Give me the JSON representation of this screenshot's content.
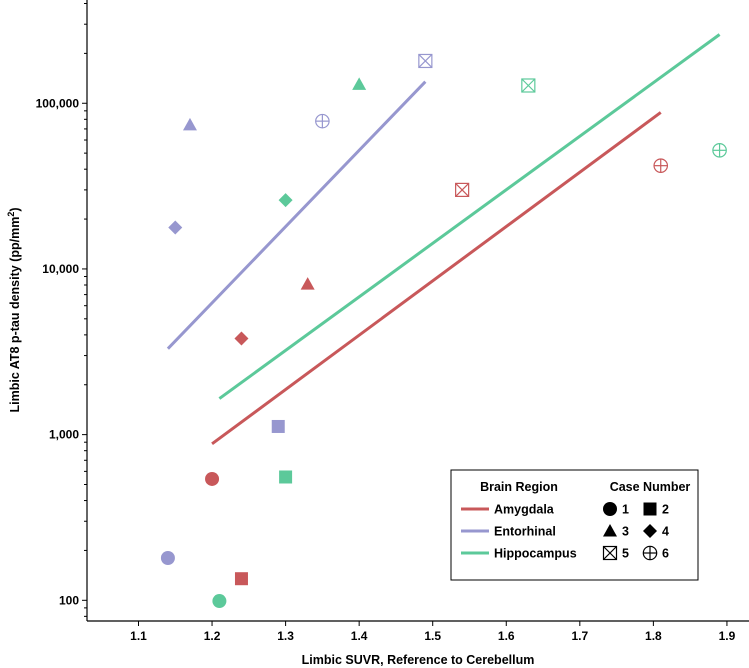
{
  "chart_data": {
    "type": "scatter",
    "xlabel": "Limbic SUVR, Reference to Cerebellum",
    "ylabel_main": "Limbic AT8 p-tau density (pp/mm",
    "ylabel_sup": "2",
    "ylabel_close": ")",
    "xlim": [
      1.03,
      1.93
    ],
    "ylim": [
      75,
      420000
    ],
    "yscale": "log",
    "x_ticks": [
      1.1,
      1.2,
      1.3,
      1.4,
      1.5,
      1.6,
      1.7,
      1.8,
      1.9
    ],
    "x_tick_labels": [
      "1.1",
      "1.2",
      "1.3",
      "1.4",
      "1.5",
      "1.6",
      "1.7",
      "1.8",
      "1.9"
    ],
    "y_ticks": [
      100,
      1000,
      10000,
      100000
    ],
    "y_tick_labels": [
      "100",
      "1,000",
      "10,000",
      "100,000"
    ],
    "series": [
      {
        "name": "Amygdala",
        "color": "#c8585a",
        "points": [
          {
            "case": 1,
            "x": 1.2,
            "y": 540
          },
          {
            "case": 2,
            "x": 1.24,
            "y": 135
          },
          {
            "case": 3,
            "x": 1.33,
            "y": 8100
          },
          {
            "case": 4,
            "x": 1.24,
            "y": 3800
          },
          {
            "case": 5,
            "x": 1.54,
            "y": 30000
          },
          {
            "case": 6,
            "x": 1.81,
            "y": 42000
          }
        ],
        "fit": {
          "x": [
            1.2,
            1.81
          ],
          "y": [
            880,
            88000
          ]
        }
      },
      {
        "name": "Entorhinal",
        "color": "#9797cf",
        "points": [
          {
            "case": 1,
            "x": 1.14,
            "y": 180
          },
          {
            "case": 2,
            "x": 1.29,
            "y": 1120
          },
          {
            "case": 3,
            "x": 1.17,
            "y": 74000
          },
          {
            "case": 4,
            "x": 1.15,
            "y": 17800
          },
          {
            "case": 5,
            "x": 1.49,
            "y": 180000
          },
          {
            "case": 6,
            "x": 1.35,
            "y": 78000
          }
        ],
        "fit": {
          "x": [
            1.14,
            1.49
          ],
          "y": [
            3300,
            135000
          ]
        }
      },
      {
        "name": "Hippocampus",
        "color": "#5cc99a",
        "points": [
          {
            "case": 1,
            "x": 1.21,
            "y": 99
          },
          {
            "case": 2,
            "x": 1.3,
            "y": 555
          },
          {
            "case": 3,
            "x": 1.4,
            "y": 130000
          },
          {
            "case": 4,
            "x": 1.3,
            "y": 26000
          },
          {
            "case": 5,
            "x": 1.63,
            "y": 128000
          },
          {
            "case": 6,
            "x": 1.89,
            "y": 52000
          }
        ],
        "fit": {
          "x": [
            1.21,
            1.89
          ],
          "y": [
            1650,
            260000
          ]
        }
      }
    ],
    "legend": {
      "position": "bottom-right",
      "region_title": "Brain Region",
      "case_title": "Case Number",
      "region_labels": [
        "Amygdala",
        "Entorhinal",
        "Hippocampus"
      ],
      "case_entries": [
        {
          "case": 1,
          "label": "1",
          "marker": "circle"
        },
        {
          "case": 2,
          "label": "2",
          "marker": "square"
        },
        {
          "case": 3,
          "label": "3",
          "marker": "triangle"
        },
        {
          "case": 4,
          "label": "4",
          "marker": "diamond"
        },
        {
          "case": 5,
          "label": "5",
          "marker": "boxed-x"
        },
        {
          "case": 6,
          "label": "6",
          "marker": "circled-plus"
        }
      ]
    }
  }
}
